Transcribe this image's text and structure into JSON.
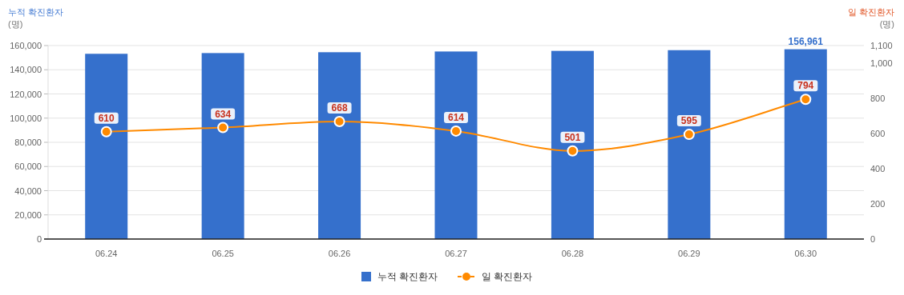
{
  "chart_data": {
    "type": "bar",
    "ylabel": "누적 확진환자\n(명)",
    "y2label": "일 확진환자\n(명)",
    "categories": [
      "06.24",
      "06.25",
      "06.26",
      "06.27",
      "06.28",
      "06.29",
      "06.30"
    ],
    "series": [
      {
        "name": "누적 확진환자",
        "color": "#3570cc",
        "values": [
          153200,
          153800,
          154500,
          155100,
          155600,
          156200,
          156961
        ],
        "value_labels": [
          null,
          null,
          null,
          null,
          null,
          null,
          "156,961"
        ]
      },
      {
        "name": "일 확진환자",
        "type": "line",
        "axis": "y2",
        "color": "#ff8a00",
        "values": [
          610,
          634,
          668,
          614,
          501,
          595,
          794
        ],
        "value_labels": [
          "610",
          "634",
          "668",
          "614",
          "501",
          "595",
          "794"
        ]
      }
    ],
    "ylim": [
      0,
      160000
    ],
    "yticks": [
      {
        "value": 0,
        "label": "0"
      },
      {
        "value": 20000,
        "label": "20,000"
      },
      {
        "value": 40000,
        "label": "40,000"
      },
      {
        "value": 60000,
        "label": "60,000"
      },
      {
        "value": 80000,
        "label": "80,000"
      },
      {
        "value": 100000,
        "label": "100,000"
      },
      {
        "value": 120000,
        "label": "120,000"
      },
      {
        "value": 140000,
        "label": "140,000"
      },
      {
        "value": 160000,
        "label": "160,000"
      }
    ],
    "y2lim": [
      0,
      1100
    ],
    "y2ticks": [
      0,
      200,
      400,
      600,
      800,
      {
        "value": 1000,
        "label": "1,000"
      },
      {
        "value": 1100,
        "label": "1,100"
      }
    ],
    "grid": "y",
    "legend": "bottom",
    "marker": "circle",
    "line_style": "solid"
  }
}
